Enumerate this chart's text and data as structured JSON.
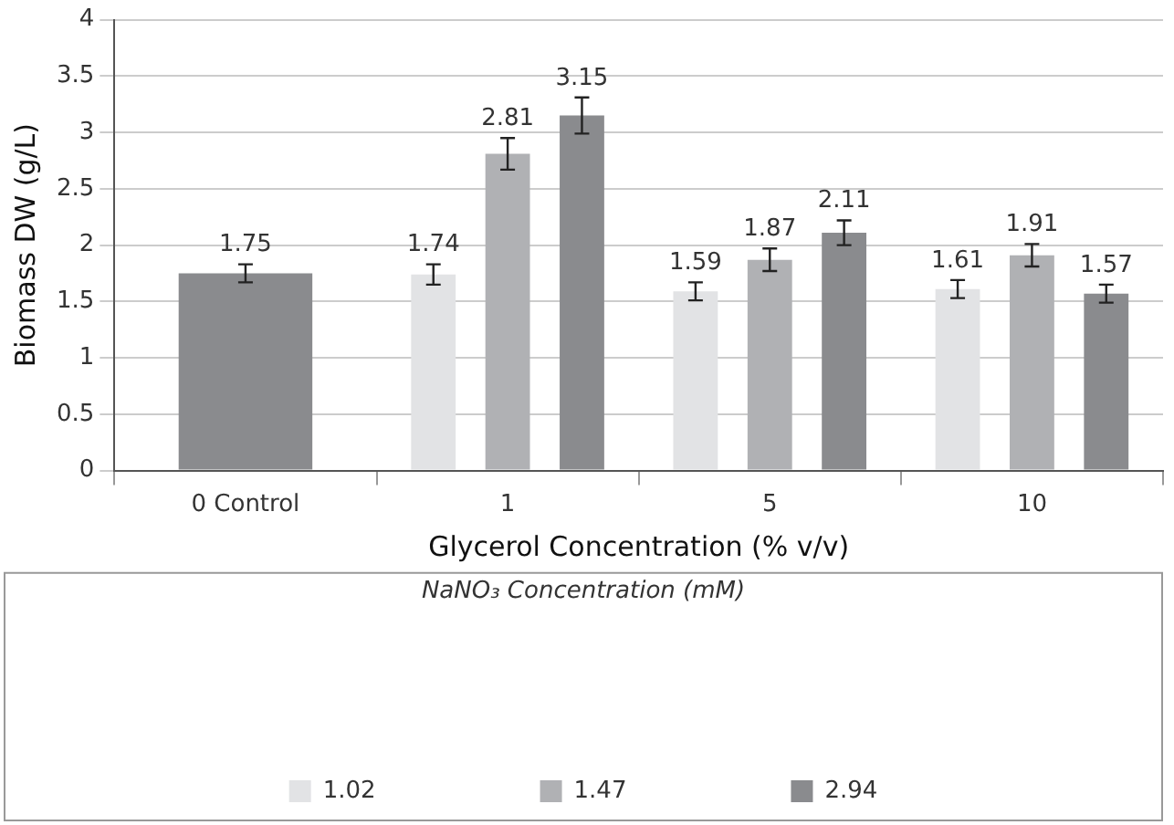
{
  "chart_data": {
    "type": "bar",
    "xlabel": "Glycerol Concentration (% v/v)",
    "ylabel": "Biomass DW (g/L)",
    "legend_title": "NaNO₃ Concentration (mM)",
    "categories": [
      "0 Control",
      "1",
      "5",
      "10"
    ],
    "series": [
      {
        "name": "1.02",
        "color": "#e2e3e5",
        "values": [
          null,
          1.74,
          1.59,
          1.61
        ],
        "errors": [
          null,
          0.09,
          0.08,
          0.08
        ]
      },
      {
        "name": "1.47",
        "color": "#b0b1b4",
        "values": [
          null,
          2.81,
          1.87,
          1.91
        ],
        "errors": [
          null,
          0.14,
          0.1,
          0.1
        ]
      },
      {
        "name": "2.94",
        "color": "#8a8b8e",
        "values": [
          1.75,
          3.15,
          2.11,
          1.57
        ],
        "errors": [
          0.08,
          0.16,
          0.11,
          0.08
        ]
      }
    ],
    "ylim": [
      0,
      4
    ],
    "yticks": [
      0,
      0.5,
      1,
      1.5,
      2,
      2.5,
      3,
      3.5,
      4
    ],
    "grid": "y",
    "legend": "bottom",
    "data_labels": true
  }
}
